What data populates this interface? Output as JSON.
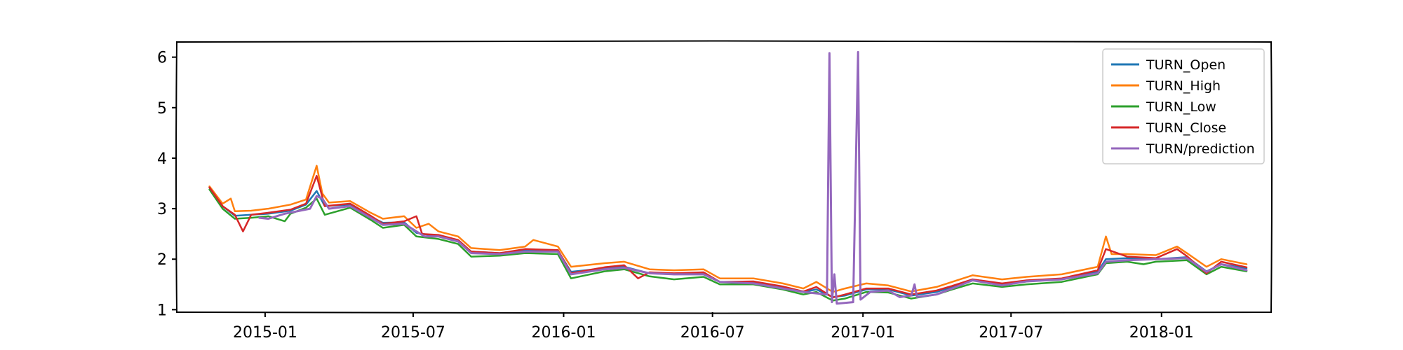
{
  "chart_data": {
    "type": "line",
    "title": "",
    "xlabel": "",
    "ylabel": "",
    "xlim": [
      "2014-09-15",
      "2018-05-15"
    ],
    "ylim": [
      0.95,
      6.3
    ],
    "x_ticks": [
      "2015-01",
      "2015-07",
      "2016-01",
      "2016-07",
      "2017-01",
      "2017-07",
      "2018-01"
    ],
    "y_ticks": [
      1,
      2,
      3,
      4,
      5,
      6
    ],
    "grid": false,
    "legend_position": "top-right",
    "series": [
      {
        "name": "TURN_Open",
        "color": "#1f77b4",
        "points": [
          [
            "2014-10-25",
            3.42
          ],
          [
            "2014-11-10",
            3.05
          ],
          [
            "2014-11-25",
            2.86
          ],
          [
            "2014-12-15",
            2.88
          ],
          [
            "2015-01-05",
            2.9
          ],
          [
            "2015-02-01",
            2.96
          ],
          [
            "2015-02-20",
            3.08
          ],
          [
            "2015-03-05",
            3.35
          ],
          [
            "2015-03-15",
            3.05
          ],
          [
            "2015-04-15",
            3.08
          ],
          [
            "2015-05-10",
            2.84
          ],
          [
            "2015-05-25",
            2.72
          ],
          [
            "2015-06-20",
            2.73
          ],
          [
            "2015-07-05",
            2.52
          ],
          [
            "2015-08-01",
            2.45
          ],
          [
            "2015-08-25",
            2.35
          ],
          [
            "2015-09-10",
            2.15
          ],
          [
            "2015-10-15",
            2.12
          ],
          [
            "2015-11-15",
            2.18
          ],
          [
            "2015-12-25",
            2.17
          ],
          [
            "2016-01-10",
            1.75
          ],
          [
            "2016-02-20",
            1.82
          ],
          [
            "2016-03-15",
            1.85
          ],
          [
            "2016-04-15",
            1.72
          ],
          [
            "2016-05-15",
            1.7
          ],
          [
            "2016-06-20",
            1.71
          ],
          [
            "2016-07-10",
            1.55
          ],
          [
            "2016-08-20",
            1.55
          ],
          [
            "2016-09-25",
            1.45
          ],
          [
            "2016-10-20",
            1.35
          ],
          [
            "2016-11-05",
            1.4
          ],
          [
            "2016-11-25",
            1.25
          ],
          [
            "2016-12-10",
            1.28
          ],
          [
            "2017-01-05",
            1.4
          ],
          [
            "2017-02-01",
            1.4
          ],
          [
            "2017-03-01",
            1.28
          ],
          [
            "2017-04-01",
            1.35
          ],
          [
            "2017-04-20",
            1.45
          ],
          [
            "2017-05-15",
            1.58
          ],
          [
            "2017-06-20",
            1.5
          ],
          [
            "2017-07-20",
            1.56
          ],
          [
            "2017-09-01",
            1.6
          ],
          [
            "2017-10-15",
            1.75
          ],
          [
            "2017-10-25",
            2.0
          ],
          [
            "2017-11-20",
            2.02
          ],
          [
            "2017-12-25",
            2.0
          ],
          [
            "2018-02-01",
            2.04
          ],
          [
            "2018-02-25",
            1.76
          ],
          [
            "2018-03-15",
            1.9
          ],
          [
            "2018-04-15",
            1.82
          ]
        ]
      },
      {
        "name": "TURN_High",
        "color": "#ff7f0e",
        "points": [
          [
            "2014-10-25",
            3.44
          ],
          [
            "2014-11-10",
            3.1
          ],
          [
            "2014-11-20",
            3.2
          ],
          [
            "2014-11-25",
            2.95
          ],
          [
            "2014-12-15",
            2.96
          ],
          [
            "2015-01-05",
            3.0
          ],
          [
            "2015-02-01",
            3.08
          ],
          [
            "2015-02-20",
            3.18
          ],
          [
            "2015-03-05",
            3.85
          ],
          [
            "2015-03-12",
            3.3
          ],
          [
            "2015-03-20",
            3.12
          ],
          [
            "2015-04-15",
            3.15
          ],
          [
            "2015-05-10",
            2.92
          ],
          [
            "2015-05-25",
            2.8
          ],
          [
            "2015-06-20",
            2.85
          ],
          [
            "2015-07-05",
            2.62
          ],
          [
            "2015-07-20",
            2.7
          ],
          [
            "2015-08-01",
            2.55
          ],
          [
            "2015-08-25",
            2.45
          ],
          [
            "2015-09-10",
            2.22
          ],
          [
            "2015-10-15",
            2.18
          ],
          [
            "2015-11-15",
            2.25
          ],
          [
            "2015-11-25",
            2.38
          ],
          [
            "2015-12-25",
            2.25
          ],
          [
            "2016-01-10",
            1.85
          ],
          [
            "2016-02-20",
            1.92
          ],
          [
            "2016-03-15",
            1.95
          ],
          [
            "2016-04-15",
            1.8
          ],
          [
            "2016-05-15",
            1.78
          ],
          [
            "2016-06-20",
            1.8
          ],
          [
            "2016-07-10",
            1.62
          ],
          [
            "2016-08-20",
            1.62
          ],
          [
            "2016-09-25",
            1.52
          ],
          [
            "2016-10-20",
            1.42
          ],
          [
            "2016-11-05",
            1.55
          ],
          [
            "2016-11-25",
            1.35
          ],
          [
            "2016-12-10",
            1.42
          ],
          [
            "2017-01-05",
            1.52
          ],
          [
            "2017-02-01",
            1.48
          ],
          [
            "2017-03-01",
            1.36
          ],
          [
            "2017-04-01",
            1.45
          ],
          [
            "2017-04-20",
            1.55
          ],
          [
            "2017-05-15",
            1.68
          ],
          [
            "2017-06-20",
            1.6
          ],
          [
            "2017-07-20",
            1.65
          ],
          [
            "2017-09-01",
            1.7
          ],
          [
            "2017-10-15",
            1.85
          ],
          [
            "2017-10-25",
            2.45
          ],
          [
            "2017-11-01",
            2.1
          ],
          [
            "2017-11-20",
            2.1
          ],
          [
            "2017-12-25",
            2.08
          ],
          [
            "2018-01-20",
            2.25
          ],
          [
            "2018-02-01",
            2.12
          ],
          [
            "2018-02-25",
            1.85
          ],
          [
            "2018-03-15",
            2.0
          ],
          [
            "2018-04-15",
            1.9
          ]
        ]
      },
      {
        "name": "TURN_Low",
        "color": "#2ca02c",
        "points": [
          [
            "2014-10-25",
            3.38
          ],
          [
            "2014-11-10",
            3.0
          ],
          [
            "2014-11-25",
            2.8
          ],
          [
            "2014-12-15",
            2.82
          ],
          [
            "2015-01-05",
            2.85
          ],
          [
            "2015-01-25",
            2.75
          ],
          [
            "2015-02-01",
            2.9
          ],
          [
            "2015-02-20",
            3.02
          ],
          [
            "2015-03-05",
            3.2
          ],
          [
            "2015-03-15",
            2.88
          ],
          [
            "2015-04-15",
            3.02
          ],
          [
            "2015-05-10",
            2.78
          ],
          [
            "2015-05-25",
            2.62
          ],
          [
            "2015-06-20",
            2.68
          ],
          [
            "2015-07-05",
            2.45
          ],
          [
            "2015-08-01",
            2.4
          ],
          [
            "2015-08-25",
            2.3
          ],
          [
            "2015-09-10",
            2.05
          ],
          [
            "2015-10-15",
            2.07
          ],
          [
            "2015-11-15",
            2.12
          ],
          [
            "2015-12-25",
            2.1
          ],
          [
            "2016-01-10",
            1.62
          ],
          [
            "2016-02-20",
            1.76
          ],
          [
            "2016-03-15",
            1.8
          ],
          [
            "2016-04-15",
            1.66
          ],
          [
            "2016-05-15",
            1.6
          ],
          [
            "2016-06-20",
            1.65
          ],
          [
            "2016-07-10",
            1.5
          ],
          [
            "2016-08-20",
            1.5
          ],
          [
            "2016-09-25",
            1.4
          ],
          [
            "2016-10-20",
            1.3
          ],
          [
            "2016-11-05",
            1.35
          ],
          [
            "2016-11-25",
            1.18
          ],
          [
            "2016-12-10",
            1.22
          ],
          [
            "2017-01-05",
            1.35
          ],
          [
            "2017-02-01",
            1.34
          ],
          [
            "2017-03-01",
            1.22
          ],
          [
            "2017-04-01",
            1.3
          ],
          [
            "2017-04-20",
            1.4
          ],
          [
            "2017-05-15",
            1.52
          ],
          [
            "2017-06-20",
            1.45
          ],
          [
            "2017-07-20",
            1.5
          ],
          [
            "2017-09-01",
            1.55
          ],
          [
            "2017-10-15",
            1.7
          ],
          [
            "2017-10-25",
            1.92
          ],
          [
            "2017-11-20",
            1.95
          ],
          [
            "2017-12-10",
            1.9
          ],
          [
            "2017-12-25",
            1.95
          ],
          [
            "2018-02-01",
            1.98
          ],
          [
            "2018-02-25",
            1.7
          ],
          [
            "2018-03-15",
            1.85
          ],
          [
            "2018-04-15",
            1.76
          ]
        ]
      },
      {
        "name": "TURN_Close",
        "color": "#d62728",
        "points": [
          [
            "2014-10-25",
            3.42
          ],
          [
            "2014-11-10",
            3.05
          ],
          [
            "2014-11-25",
            2.88
          ],
          [
            "2014-12-05",
            2.55
          ],
          [
            "2014-12-15",
            2.88
          ],
          [
            "2015-01-05",
            2.92
          ],
          [
            "2015-02-01",
            2.98
          ],
          [
            "2015-02-20",
            3.1
          ],
          [
            "2015-03-05",
            3.65
          ],
          [
            "2015-03-15",
            3.05
          ],
          [
            "2015-04-15",
            3.1
          ],
          [
            "2015-05-10",
            2.86
          ],
          [
            "2015-05-25",
            2.7
          ],
          [
            "2015-06-20",
            2.75
          ],
          [
            "2015-07-05",
            2.85
          ],
          [
            "2015-07-12",
            2.5
          ],
          [
            "2015-08-01",
            2.48
          ],
          [
            "2015-08-25",
            2.38
          ],
          [
            "2015-09-10",
            2.15
          ],
          [
            "2015-10-15",
            2.12
          ],
          [
            "2015-11-15",
            2.2
          ],
          [
            "2015-12-25",
            2.18
          ],
          [
            "2016-01-10",
            1.72
          ],
          [
            "2016-02-20",
            1.84
          ],
          [
            "2016-03-15",
            1.88
          ],
          [
            "2016-04-01",
            1.62
          ],
          [
            "2016-04-15",
            1.74
          ],
          [
            "2016-05-15",
            1.72
          ],
          [
            "2016-06-20",
            1.74
          ],
          [
            "2016-07-10",
            1.55
          ],
          [
            "2016-08-20",
            1.56
          ],
          [
            "2016-09-25",
            1.46
          ],
          [
            "2016-10-20",
            1.36
          ],
          [
            "2016-11-05",
            1.45
          ],
          [
            "2016-11-25",
            1.24
          ],
          [
            "2016-12-10",
            1.3
          ],
          [
            "2017-01-05",
            1.42
          ],
          [
            "2017-02-01",
            1.42
          ],
          [
            "2017-03-01",
            1.3
          ],
          [
            "2017-04-01",
            1.38
          ],
          [
            "2017-04-20",
            1.47
          ],
          [
            "2017-05-15",
            1.6
          ],
          [
            "2017-06-20",
            1.52
          ],
          [
            "2017-07-20",
            1.58
          ],
          [
            "2017-09-01",
            1.62
          ],
          [
            "2017-10-15",
            1.78
          ],
          [
            "2017-10-25",
            2.2
          ],
          [
            "2017-11-20",
            2.05
          ],
          [
            "2017-12-25",
            2.02
          ],
          [
            "2018-01-20",
            2.2
          ],
          [
            "2018-02-01",
            2.06
          ],
          [
            "2018-02-25",
            1.72
          ],
          [
            "2018-03-15",
            1.95
          ],
          [
            "2018-04-15",
            1.84
          ]
        ]
      },
      {
        "name": "TURN/prediction",
        "color": "#9467bd",
        "points": [
          [
            "2014-12-25",
            2.82
          ],
          [
            "2015-01-05",
            2.8
          ],
          [
            "2015-01-25",
            2.9
          ],
          [
            "2015-02-10",
            2.95
          ],
          [
            "2015-02-25",
            3.0
          ],
          [
            "2015-03-05",
            3.25
          ],
          [
            "2015-03-12",
            3.2
          ],
          [
            "2015-03-20",
            3.0
          ],
          [
            "2015-04-15",
            3.05
          ],
          [
            "2015-05-10",
            2.82
          ],
          [
            "2015-05-25",
            2.68
          ],
          [
            "2015-06-20",
            2.7
          ],
          [
            "2015-07-15",
            2.45
          ],
          [
            "2015-08-01",
            2.45
          ],
          [
            "2015-08-25",
            2.35
          ],
          [
            "2015-09-10",
            2.12
          ],
          [
            "2015-10-15",
            2.1
          ],
          [
            "2015-11-15",
            2.15
          ],
          [
            "2015-12-25",
            2.15
          ],
          [
            "2016-01-10",
            1.7
          ],
          [
            "2016-02-20",
            1.8
          ],
          [
            "2016-03-15",
            1.83
          ],
          [
            "2016-04-15",
            1.72
          ],
          [
            "2016-05-15",
            1.7
          ],
          [
            "2016-06-20",
            1.7
          ],
          [
            "2016-07-10",
            1.55
          ],
          [
            "2016-08-20",
            1.52
          ],
          [
            "2016-09-25",
            1.42
          ],
          [
            "2016-10-20",
            1.35
          ],
          [
            "2016-11-18",
            1.3
          ],
          [
            "2016-11-21",
            6.08
          ],
          [
            "2016-11-24",
            1.15
          ],
          [
            "2016-11-27",
            1.7
          ],
          [
            "2016-11-30",
            1.12
          ],
          [
            "2016-12-20",
            1.15
          ],
          [
            "2016-12-26",
            6.1
          ],
          [
            "2016-12-29",
            1.2
          ],
          [
            "2017-01-10",
            1.35
          ],
          [
            "2017-02-01",
            1.38
          ],
          [
            "2017-02-15",
            1.25
          ],
          [
            "2017-03-01",
            1.28
          ],
          [
            "2017-03-05",
            1.5
          ],
          [
            "2017-03-08",
            1.25
          ],
          [
            "2017-04-01",
            1.3
          ],
          [
            "2017-04-20",
            1.42
          ],
          [
            "2017-05-15",
            1.58
          ],
          [
            "2017-06-20",
            1.48
          ],
          [
            "2017-07-20",
            1.56
          ],
          [
            "2017-09-01",
            1.6
          ],
          [
            "2017-10-15",
            1.72
          ],
          [
            "2017-10-25",
            1.95
          ],
          [
            "2017-11-20",
            1.98
          ],
          [
            "2017-12-25",
            2.0
          ],
          [
            "2018-02-01",
            2.02
          ],
          [
            "2018-02-25",
            1.75
          ],
          [
            "2018-03-15",
            1.9
          ],
          [
            "2018-04-15",
            1.78
          ]
        ]
      }
    ]
  }
}
